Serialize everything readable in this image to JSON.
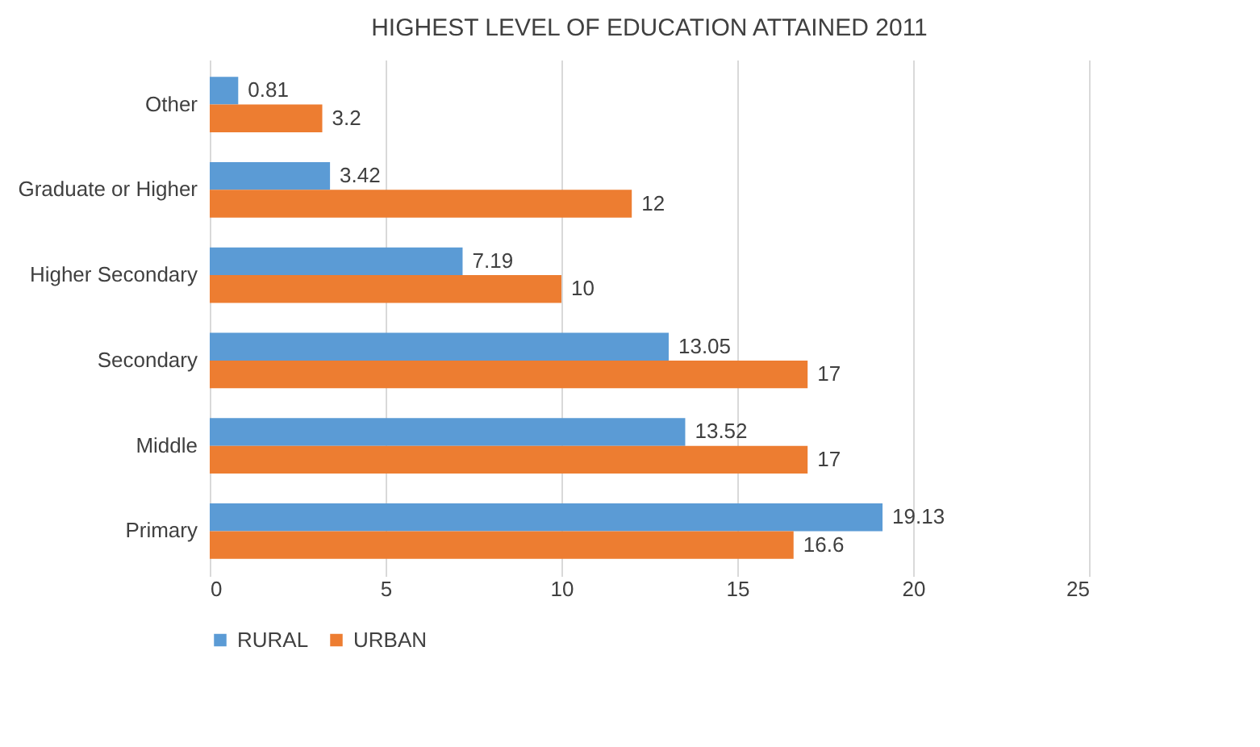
{
  "chart_data": {
    "type": "bar",
    "orientation": "horizontal",
    "title": "HIGHEST LEVEL OF EDUCATION ATTAINED 2011",
    "categories": [
      "Other",
      "Graduate or Higher",
      "Higher Secondary",
      "Secondary",
      "Middle",
      "Primary"
    ],
    "series": [
      {
        "name": "RURAL",
        "color": "#5b9bd5",
        "values": [
          0.81,
          3.42,
          7.19,
          13.05,
          13.52,
          19.13
        ]
      },
      {
        "name": "URBAN",
        "color": "#ed7d31",
        "values": [
          3.2,
          12,
          10,
          17,
          17,
          16.6
        ]
      }
    ],
    "xlim": [
      0,
      25
    ],
    "xticks": [
      0,
      5,
      10,
      15,
      20,
      25
    ],
    "grid": "x",
    "legend": "bottom",
    "data_labels": true
  }
}
